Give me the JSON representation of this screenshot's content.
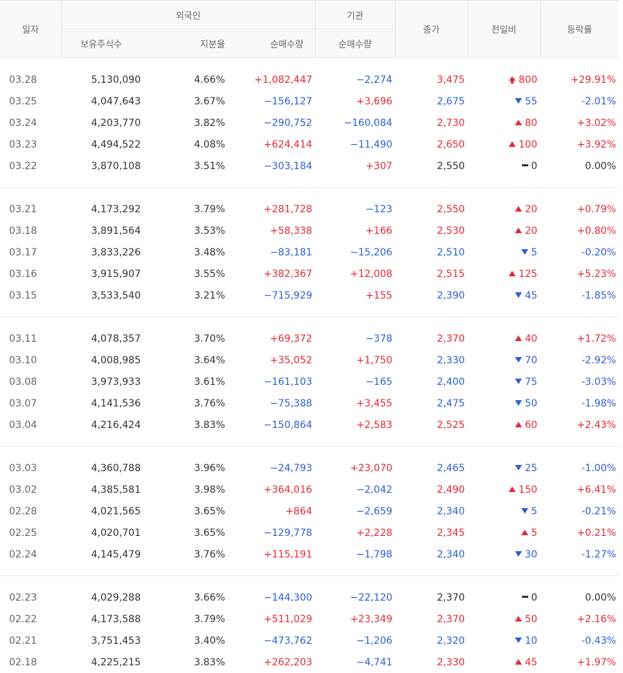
{
  "header": {
    "date": "일자",
    "foreign_group": "외국인",
    "inst_group": "기관",
    "close": "종가",
    "change": "전일비",
    "rate": "등락률",
    "holdings": "보유주식수",
    "ratio": "지분율",
    "foreign_net": "순매수량",
    "inst_net": "순매수량"
  },
  "groups": [
    [
      {
        "date": "03.28",
        "hold": "5,130,090",
        "ratio": "4.66%",
        "fnet": "+1,082,447",
        "inet": "−2,274",
        "close": "3,475",
        "chg": "800",
        "rate": "+29.91%",
        "dir": "upper"
      },
      {
        "date": "03.25",
        "hold": "4,047,643",
        "ratio": "3.67%",
        "fnet": "−156,127",
        "inet": "+3,696",
        "close": "2,675",
        "chg": "55",
        "rate": "-2.01%",
        "dir": "down"
      },
      {
        "date": "03.24",
        "hold": "4,203,770",
        "ratio": "3.82%",
        "fnet": "−290,752",
        "inet": "−160,084",
        "close": "2,730",
        "chg": "80",
        "rate": "+3.02%",
        "dir": "up"
      },
      {
        "date": "03.23",
        "hold": "4,494,522",
        "ratio": "4.08%",
        "fnet": "+624,414",
        "inet": "−11,490",
        "close": "2,650",
        "chg": "100",
        "rate": "+3.92%",
        "dir": "up"
      },
      {
        "date": "03.22",
        "hold": "3,870,108",
        "ratio": "3.51%",
        "fnet": "−303,184",
        "inet": "+307",
        "close": "2,550",
        "chg": "0",
        "rate": "0.00%",
        "dir": "flat"
      }
    ],
    [
      {
        "date": "03.21",
        "hold": "4,173,292",
        "ratio": "3.79%",
        "fnet": "+281,728",
        "inet": "−123",
        "close": "2,550",
        "chg": "20",
        "rate": "+0.79%",
        "dir": "up"
      },
      {
        "date": "03.18",
        "hold": "3,891,564",
        "ratio": "3.53%",
        "fnet": "+58,338",
        "inet": "+166",
        "close": "2,530",
        "chg": "20",
        "rate": "+0.80%",
        "dir": "up"
      },
      {
        "date": "03.17",
        "hold": "3,833,226",
        "ratio": "3.48%",
        "fnet": "−83,181",
        "inet": "−15,206",
        "close": "2,510",
        "chg": "5",
        "rate": "-0.20%",
        "dir": "down"
      },
      {
        "date": "03.16",
        "hold": "3,915,907",
        "ratio": "3.55%",
        "fnet": "+382,367",
        "inet": "+12,008",
        "close": "2,515",
        "chg": "125",
        "rate": "+5.23%",
        "dir": "up"
      },
      {
        "date": "03.15",
        "hold": "3,533,540",
        "ratio": "3.21%",
        "fnet": "−715,929",
        "inet": "+155",
        "close": "2,390",
        "chg": "45",
        "rate": "-1.85%",
        "dir": "down"
      }
    ],
    [
      {
        "date": "03.11",
        "hold": "4,078,357",
        "ratio": "3.70%",
        "fnet": "+69,372",
        "inet": "−378",
        "close": "2,370",
        "chg": "40",
        "rate": "+1.72%",
        "dir": "up"
      },
      {
        "date": "03.10",
        "hold": "4,008,985",
        "ratio": "3.64%",
        "fnet": "+35,052",
        "inet": "+1,750",
        "close": "2,330",
        "chg": "70",
        "rate": "-2.92%",
        "dir": "down"
      },
      {
        "date": "03.08",
        "hold": "3,973,933",
        "ratio": "3.61%",
        "fnet": "−161,103",
        "inet": "−165",
        "close": "2,400",
        "chg": "75",
        "rate": "-3.03%",
        "dir": "down"
      },
      {
        "date": "03.07",
        "hold": "4,141,536",
        "ratio": "3.76%",
        "fnet": "−75,388",
        "inet": "+3,455",
        "close": "2,475",
        "chg": "50",
        "rate": "-1.98%",
        "dir": "down"
      },
      {
        "date": "03.04",
        "hold": "4,216,424",
        "ratio": "3.83%",
        "fnet": "−150,864",
        "inet": "+2,583",
        "close": "2,525",
        "chg": "60",
        "rate": "+2.43%",
        "dir": "up"
      }
    ],
    [
      {
        "date": "03.03",
        "hold": "4,360,788",
        "ratio": "3.96%",
        "fnet": "−24,793",
        "inet": "+23,070",
        "close": "2,465",
        "chg": "25",
        "rate": "-1.00%",
        "dir": "down"
      },
      {
        "date": "03.02",
        "hold": "4,385,581",
        "ratio": "3.98%",
        "fnet": "+364,016",
        "inet": "−2,042",
        "close": "2,490",
        "chg": "150",
        "rate": "+6.41%",
        "dir": "up"
      },
      {
        "date": "02.28",
        "hold": "4,021,565",
        "ratio": "3.65%",
        "fnet": "+864",
        "inet": "−2,659",
        "close": "2,340",
        "chg": "5",
        "rate": "-0.21%",
        "dir": "down"
      },
      {
        "date": "02.25",
        "hold": "4,020,701",
        "ratio": "3.65%",
        "fnet": "−129,778",
        "inet": "+2,228",
        "close": "2,345",
        "chg": "5",
        "rate": "+0.21%",
        "dir": "up"
      },
      {
        "date": "02.24",
        "hold": "4,145,479",
        "ratio": "3.76%",
        "fnet": "+115,191",
        "inet": "−1,798",
        "close": "2,340",
        "chg": "30",
        "rate": "-1.27%",
        "dir": "down"
      }
    ],
    [
      {
        "date": "02.23",
        "hold": "4,029,288",
        "ratio": "3.66%",
        "fnet": "−144,300",
        "inet": "−22,120",
        "close": "2,370",
        "chg": "0",
        "rate": "0.00%",
        "dir": "flat"
      },
      {
        "date": "02.22",
        "hold": "4,173,588",
        "ratio": "3.79%",
        "fnet": "+511,029",
        "inet": "+23,349",
        "close": "2,370",
        "chg": "50",
        "rate": "+2.16%",
        "dir": "up"
      },
      {
        "date": "02.21",
        "hold": "3,751,453",
        "ratio": "3.40%",
        "fnet": "−473,762",
        "inet": "−1,206",
        "close": "2,320",
        "chg": "10",
        "rate": "-0.43%",
        "dir": "down"
      },
      {
        "date": "02.18",
        "hold": "4,225,215",
        "ratio": "3.83%",
        "fnet": "+262,203",
        "inet": "−4,741",
        "close": "2,330",
        "chg": "45",
        "rate": "+1.97%",
        "dir": "up"
      }
    ]
  ]
}
